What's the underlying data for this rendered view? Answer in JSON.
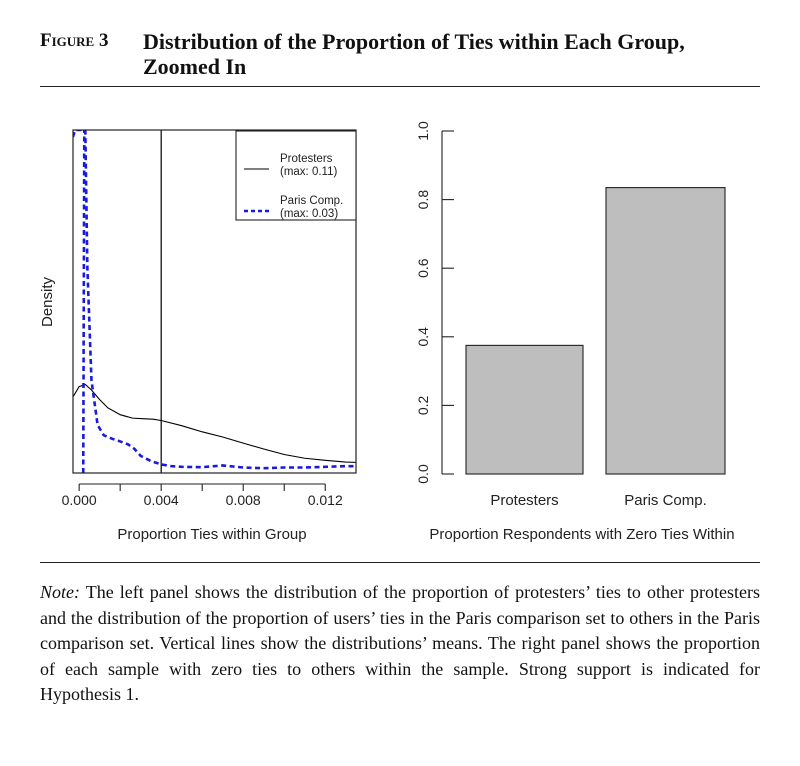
{
  "figure": {
    "label": "Figure 3",
    "title": "Distribution of the Proportion of Ties within Each Group, Zoomed In"
  },
  "note": {
    "label": "Note:",
    "text": "The left panel shows the distribution of the proportion of protesters’ ties to other protesters and the distribution of the proportion of users’ ties in the Paris comparison set to others in the Paris comparison set. Vertical lines show the distributions’ means. The right panel shows the proportion of each sample with zero ties to others within the sample. Strong support is indicated for Hypothesis 1."
  },
  "chart_data": [
    {
      "type": "line",
      "title": "",
      "xlabel": "Proportion Ties within Group",
      "ylabel": "Density",
      "xlim": [
        -0.0003,
        0.0135
      ],
      "ylim": [
        0,
        1
      ],
      "xticks": [
        0.0,
        0.004,
        0.008,
        0.012
      ],
      "xtick_labels": [
        "0.000",
        "0.004",
        "0.008",
        "0.012"
      ],
      "yticks_shown": false,
      "legend": {
        "placement": "top-right",
        "entries": [
          {
            "line1": "Protesters",
            "line2": "(max: 0.11)",
            "style": "solid",
            "color": "#000000"
          },
          {
            "line1": "Paris Comp.",
            "line2": "(max: 0.03)",
            "style": "dashed",
            "color": "#1a1adb"
          }
        ]
      },
      "vertical_lines": [
        {
          "x": 0.004,
          "color": "#000000",
          "style": "solid"
        }
      ],
      "series": [
        {
          "name": "Protesters",
          "color": "#000000",
          "style": "solid",
          "points": [
            [
              -0.0003,
              0.222
            ],
            [
              0.0,
              0.252
            ],
            [
              0.0003,
              0.258
            ],
            [
              0.0006,
              0.242
            ],
            [
              0.001,
              0.214
            ],
            [
              0.0014,
              0.19
            ],
            [
              0.002,
              0.17
            ],
            [
              0.0026,
              0.16
            ],
            [
              0.0032,
              0.158
            ],
            [
              0.0036,
              0.157
            ],
            [
              0.004,
              0.153
            ],
            [
              0.005,
              0.138
            ],
            [
              0.006,
              0.12
            ],
            [
              0.007,
              0.105
            ],
            [
              0.008,
              0.087
            ],
            [
              0.009,
              0.07
            ],
            [
              0.01,
              0.054
            ],
            [
              0.011,
              0.043
            ],
            [
              0.012,
              0.037
            ],
            [
              0.013,
              0.032
            ],
            [
              0.0135,
              0.031
            ]
          ]
        },
        {
          "name": "Paris Comp.",
          "color": "#1a1adb",
          "style": "dashed",
          "points": [
            [
              -0.0003,
              0.98
            ],
            [
              -0.0002,
              1.0
            ],
            [
              0.0003,
              1.0
            ],
            [
              0.0004,
              0.6
            ],
            [
              0.0006,
              0.27
            ],
            [
              0.0009,
              0.14
            ],
            [
              0.0012,
              0.11
            ],
            [
              0.0016,
              0.1
            ],
            [
              0.002,
              0.092
            ],
            [
              0.0024,
              0.083
            ],
            [
              0.0027,
              0.07
            ],
            [
              0.003,
              0.05
            ],
            [
              0.0035,
              0.035
            ],
            [
              0.004,
              0.025
            ],
            [
              0.0045,
              0.02
            ],
            [
              0.005,
              0.018
            ],
            [
              0.006,
              0.017
            ],
            [
              0.007,
              0.022
            ],
            [
              0.008,
              0.016
            ],
            [
              0.009,
              0.014
            ],
            [
              0.01,
              0.016
            ],
            [
              0.011,
              0.016
            ],
            [
              0.012,
              0.018
            ],
            [
              0.013,
              0.02
            ],
            [
              0.0135,
              0.02
            ]
          ]
        },
        {
          "name": "Paris Comp. left spike",
          "color": "#1a1adb",
          "style": "dashed",
          "points": [
            [
              0.0002,
              0.0
            ],
            [
              0.00025,
              1.0
            ]
          ]
        }
      ]
    },
    {
      "type": "bar",
      "title": "",
      "xlabel": "Proportion Respondents with Zero Ties Within",
      "ylabel": "",
      "categories": [
        "Protesters",
        "Paris Comp."
      ],
      "values": [
        0.375,
        0.835
      ],
      "ylim": [
        0.0,
        1.0
      ],
      "yticks": [
        0.0,
        0.2,
        0.4,
        0.6,
        0.8,
        1.0
      ],
      "ytick_labels": [
        "0.0",
        "0.2",
        "0.4",
        "0.6",
        "0.8",
        "1.0"
      ],
      "bar_color": "#bebebe"
    }
  ]
}
